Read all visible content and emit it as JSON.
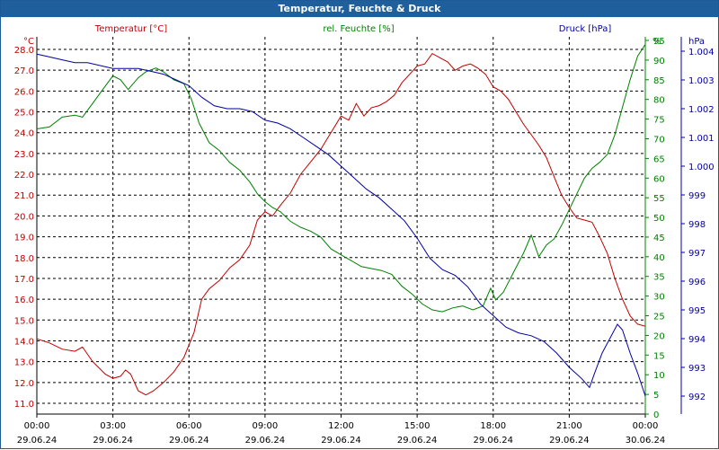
{
  "window": {
    "title": "Temperatur, Feuchte & Druck"
  },
  "colors": {
    "temperature": "#c00000",
    "humidity": "#008000",
    "pressure": "#0000a0",
    "grid": "#000000",
    "titlebar": "#1f5f9c"
  },
  "chart_data": {
    "type": "line",
    "grid": true,
    "x_ticks": [
      {
        "time": "00:00",
        "date": "29.06.24"
      },
      {
        "time": "03:00",
        "date": "29.06.24"
      },
      {
        "time": "06:00",
        "date": "29.06.24"
      },
      {
        "time": "09:00",
        "date": "29.06.24"
      },
      {
        "time": "12:00",
        "date": "29.06.24"
      },
      {
        "time": "15:00",
        "date": "29.06.24"
      },
      {
        "time": "18:00",
        "date": "29.06.24"
      },
      {
        "time": "21:00",
        "date": "29.06.24"
      },
      {
        "time": "00:00",
        "date": "30.06.24"
      }
    ],
    "axes": {
      "temperature": {
        "label": "Temperatur [°C]",
        "unit": "°C",
        "ylim": [
          10.5,
          28.5
        ],
        "ticks": [
          "11.0",
          "12.0",
          "13.0",
          "14.0",
          "15.0",
          "16.0",
          "17.0",
          "18.0",
          "19.0",
          "20.0",
          "21.0",
          "22.0",
          "23.0",
          "24.0",
          "25.0",
          "26.0",
          "27.0",
          "28.0"
        ]
      },
      "humidity": {
        "label": "rel. Feuchte [%]",
        "unit": "%",
        "ylim": [
          0,
          100
        ],
        "ticks": [
          "0",
          "5",
          "10",
          "15",
          "20",
          "25",
          "30",
          "35",
          "40",
          "45",
          "50",
          "55",
          "60",
          "65",
          "70",
          "75",
          "80",
          "85",
          "90",
          "95"
        ]
      },
      "pressure": {
        "label": "Druck [hPa]",
        "unit": "hPa",
        "ylim": [
          990.5,
          1004.5
        ],
        "ticks": [
          "992",
          "993",
          "994",
          "995",
          "996",
          "997",
          "998",
          "999",
          "1.000",
          "1.001",
          "1.002",
          "1.003",
          "1.004"
        ]
      }
    },
    "series": [
      {
        "name": "Temperatur [°C]",
        "axis": "temperature",
        "points": [
          [
            0,
            14.1
          ],
          [
            0.5,
            13.9
          ],
          [
            1,
            13.6
          ],
          [
            1.5,
            13.5
          ],
          [
            1.8,
            13.7
          ],
          [
            2.2,
            13.0
          ],
          [
            2.7,
            12.4
          ],
          [
            3,
            12.2
          ],
          [
            3.3,
            12.3
          ],
          [
            3.5,
            12.6
          ],
          [
            3.7,
            12.4
          ],
          [
            4,
            11.6
          ],
          [
            4.3,
            11.4
          ],
          [
            4.6,
            11.6
          ],
          [
            5,
            12.0
          ],
          [
            5.4,
            12.5
          ],
          [
            5.8,
            13.2
          ],
          [
            6.2,
            14.4
          ],
          [
            6.5,
            16.0
          ],
          [
            6.8,
            16.5
          ],
          [
            7.2,
            16.9
          ],
          [
            7.6,
            17.5
          ],
          [
            8,
            17.9
          ],
          [
            8.4,
            18.6
          ],
          [
            8.7,
            19.8
          ],
          [
            9,
            20.2
          ],
          [
            9.3,
            20.0
          ],
          [
            9.6,
            20.5
          ],
          [
            10,
            21.1
          ],
          [
            10.4,
            22.0
          ],
          [
            10.8,
            22.6
          ],
          [
            11.2,
            23.2
          ],
          [
            11.6,
            24.0
          ],
          [
            12,
            24.8
          ],
          [
            12.3,
            24.6
          ],
          [
            12.6,
            25.4
          ],
          [
            12.9,
            24.8
          ],
          [
            13.2,
            25.2
          ],
          [
            13.5,
            25.3
          ],
          [
            13.8,
            25.5
          ],
          [
            14.1,
            25.8
          ],
          [
            14.4,
            26.4
          ],
          [
            14.7,
            26.8
          ],
          [
            15,
            27.2
          ],
          [
            15.3,
            27.3
          ],
          [
            15.6,
            27.8
          ],
          [
            15.9,
            27.6
          ],
          [
            16.2,
            27.4
          ],
          [
            16.5,
            27.0
          ],
          [
            16.8,
            27.2
          ],
          [
            17.1,
            27.3
          ],
          [
            17.4,
            27.1
          ],
          [
            17.7,
            26.8
          ],
          [
            18,
            26.2
          ],
          [
            18.3,
            26.0
          ],
          [
            18.6,
            25.6
          ],
          [
            18.9,
            25.0
          ],
          [
            19.2,
            24.4
          ],
          [
            19.5,
            23.9
          ],
          [
            19.8,
            23.4
          ],
          [
            20.1,
            22.8
          ],
          [
            20.4,
            21.9
          ],
          [
            20.7,
            21.0
          ],
          [
            21,
            20.4
          ],
          [
            21.3,
            19.9
          ],
          [
            21.6,
            19.8
          ],
          [
            21.9,
            19.7
          ],
          [
            22.2,
            19.0
          ],
          [
            22.5,
            18.2
          ],
          [
            22.8,
            17.0
          ],
          [
            23.1,
            16.0
          ],
          [
            23.4,
            15.2
          ],
          [
            23.7,
            14.8
          ],
          [
            24,
            14.7
          ]
        ]
      },
      {
        "name": "rel. Feuchte [%]",
        "axis": "humidity",
        "points": [
          [
            0,
            72.5
          ],
          [
            0.5,
            73.0
          ],
          [
            1,
            75.5
          ],
          [
            1.5,
            76.0
          ],
          [
            1.8,
            75.5
          ],
          [
            2.2,
            79.0
          ],
          [
            2.6,
            82.5
          ],
          [
            3,
            86.0
          ],
          [
            3.3,
            85.0
          ],
          [
            3.6,
            82.5
          ],
          [
            4,
            85.5
          ],
          [
            4.3,
            87.0
          ],
          [
            4.7,
            88.0
          ],
          [
            5,
            87.0
          ],
          [
            5.4,
            85.0
          ],
          [
            5.8,
            84.0
          ],
          [
            6.1,
            80.0
          ],
          [
            6.4,
            74.0
          ],
          [
            6.8,
            69.0
          ],
          [
            7.2,
            67.0
          ],
          [
            7.6,
            64.0
          ],
          [
            8,
            62.0
          ],
          [
            8.4,
            59.0
          ],
          [
            8.7,
            56.0
          ],
          [
            9,
            54.0
          ],
          [
            9.3,
            52.5
          ],
          [
            9.6,
            51.5
          ],
          [
            10,
            49.0
          ],
          [
            10.4,
            47.5
          ],
          [
            10.8,
            46.5
          ],
          [
            11.2,
            45.0
          ],
          [
            11.6,
            42.0
          ],
          [
            12,
            40.5
          ],
          [
            12.4,
            39.0
          ],
          [
            12.8,
            37.5
          ],
          [
            13.2,
            37.0
          ],
          [
            13.6,
            36.5
          ],
          [
            14,
            35.5
          ],
          [
            14.4,
            32.5
          ],
          [
            14.8,
            30.5
          ],
          [
            15.2,
            28.0
          ],
          [
            15.6,
            26.5
          ],
          [
            16,
            26.0
          ],
          [
            16.4,
            27.0
          ],
          [
            16.8,
            27.5
          ],
          [
            17.2,
            26.5
          ],
          [
            17.6,
            27.5
          ],
          [
            17.9,
            32.0
          ],
          [
            18.1,
            29.0
          ],
          [
            18.4,
            31.0
          ],
          [
            18.8,
            36.0
          ],
          [
            19.2,
            41.0
          ],
          [
            19.5,
            45.5
          ],
          [
            19.8,
            40.0
          ],
          [
            20.1,
            43.0
          ],
          [
            20.4,
            44.5
          ],
          [
            20.7,
            48.0
          ],
          [
            21,
            52.0
          ],
          [
            21.3,
            56.0
          ],
          [
            21.6,
            60.0
          ],
          [
            21.9,
            62.5
          ],
          [
            22.2,
            64.0
          ],
          [
            22.5,
            66.0
          ],
          [
            22.8,
            71.0
          ],
          [
            23.1,
            78.0
          ],
          [
            23.4,
            85.0
          ],
          [
            23.7,
            91.0
          ],
          [
            24,
            94.0
          ]
        ]
      },
      {
        "name": "Druck [hPa]",
        "axis": "pressure",
        "points": [
          [
            0,
            1003.9
          ],
          [
            0.5,
            1003.8
          ],
          [
            1,
            1003.7
          ],
          [
            1.5,
            1003.6
          ],
          [
            2,
            1003.6
          ],
          [
            2.5,
            1003.5
          ],
          [
            3,
            1003.4
          ],
          [
            3.5,
            1003.4
          ],
          [
            4,
            1003.4
          ],
          [
            4.5,
            1003.3
          ],
          [
            5,
            1003.2
          ],
          [
            5.5,
            1003.0
          ],
          [
            6,
            1002.8
          ],
          [
            6.5,
            1002.4
          ],
          [
            7,
            1002.1
          ],
          [
            7.5,
            1002.0
          ],
          [
            8,
            1002.0
          ],
          [
            8.5,
            1001.9
          ],
          [
            9,
            1001.6
          ],
          [
            9.5,
            1001.5
          ],
          [
            10,
            1001.3
          ],
          [
            10.5,
            1001.0
          ],
          [
            11,
            1000.7
          ],
          [
            11.5,
            1000.4
          ],
          [
            12,
            1000.0
          ],
          [
            12.5,
            999.6
          ],
          [
            13,
            999.2
          ],
          [
            13.5,
            998.9
          ],
          [
            14,
            998.5
          ],
          [
            14.5,
            998.1
          ],
          [
            15,
            997.5
          ],
          [
            15.5,
            996.8
          ],
          [
            16,
            996.4
          ],
          [
            16.5,
            996.2
          ],
          [
            17,
            995.8
          ],
          [
            17.5,
            995.2
          ],
          [
            18,
            994.8
          ],
          [
            18.5,
            994.4
          ],
          [
            19,
            994.2
          ],
          [
            19.5,
            994.1
          ],
          [
            20,
            993.9
          ],
          [
            20.5,
            993.5
          ],
          [
            21,
            993.0
          ],
          [
            21.5,
            992.6
          ],
          [
            21.8,
            992.3
          ],
          [
            22,
            992.8
          ],
          [
            22.3,
            993.5
          ],
          [
            22.6,
            994.0
          ],
          [
            22.9,
            994.5
          ],
          [
            23.1,
            994.3
          ],
          [
            23.4,
            993.5
          ],
          [
            23.7,
            992.8
          ],
          [
            24,
            992.0
          ]
        ]
      }
    ]
  }
}
